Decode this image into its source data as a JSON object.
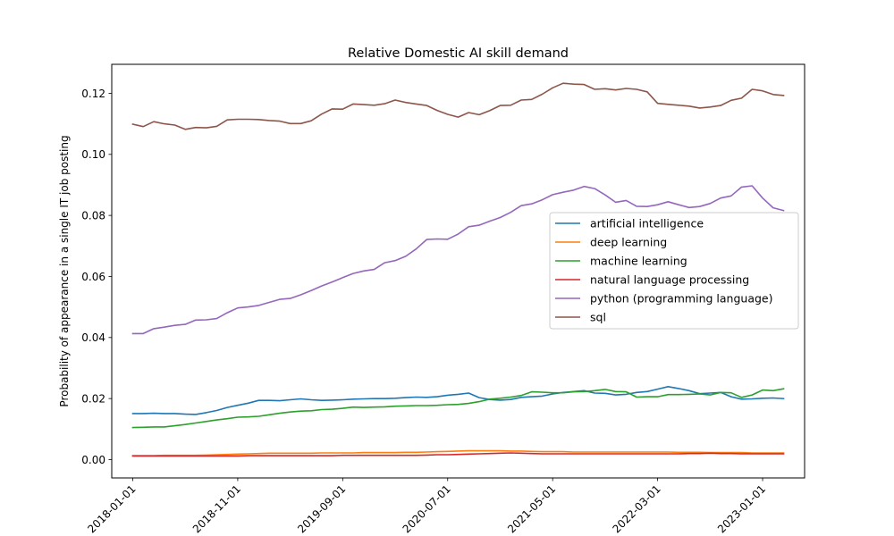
{
  "chart_data": {
    "type": "line",
    "title": "Relative Domestic AI skill demand",
    "xlabel": "",
    "ylabel": "Probability of appearance in a single IT job posting",
    "x_tick_labels": [
      "2018-01-01",
      "2018-11-01",
      "2019-09-01",
      "2020-07-01",
      "2021-05-01",
      "2022-03-01",
      "2023-01-01"
    ],
    "x_start": "2018-01",
    "x_end": "2023-02",
    "xlim": [
      "2017-11",
      "2023-05"
    ],
    "y_ticks": [
      0.0,
      0.02,
      0.04,
      0.06,
      0.08,
      0.1,
      0.12
    ],
    "y_tick_labels": [
      "0.00",
      "0.02",
      "0.04",
      "0.06",
      "0.08",
      "0.10",
      "0.12"
    ],
    "ylim": [
      -0.006,
      0.1295
    ],
    "grid": false,
    "legend_position": "center-right",
    "series": [
      {
        "name": "artificial intelligence",
        "color": "#1f77b4",
        "values": [
          0.0151,
          0.0151,
          0.0152,
          0.0151,
          0.0151,
          0.0149,
          0.0148,
          0.0154,
          0.0161,
          0.0171,
          0.0178,
          0.0185,
          0.0194,
          0.0194,
          0.0193,
          0.0196,
          0.0199,
          0.0196,
          0.0194,
          0.0195,
          0.0196,
          0.0198,
          0.0199,
          0.02,
          0.02,
          0.0201,
          0.0203,
          0.0205,
          0.0204,
          0.0206,
          0.0211,
          0.0214,
          0.0218,
          0.0203,
          0.0197,
          0.0195,
          0.0197,
          0.0204,
          0.0206,
          0.0208,
          0.0215,
          0.022,
          0.0223,
          0.0226,
          0.0218,
          0.0217,
          0.0212,
          0.0214,
          0.022,
          0.0223,
          0.0231,
          0.0239,
          0.0233,
          0.0226,
          0.0216,
          0.0218,
          0.022,
          0.0206,
          0.0198,
          0.0199,
          0.0201,
          0.0202,
          0.02
        ]
      },
      {
        "name": "deep learning",
        "color": "#ff7f0e",
        "values": [
          0.0013,
          0.0013,
          0.0013,
          0.0014,
          0.0014,
          0.0014,
          0.0014,
          0.0015,
          0.0016,
          0.0017,
          0.0018,
          0.0019,
          0.002,
          0.0021,
          0.0021,
          0.0021,
          0.0021,
          0.0021,
          0.0022,
          0.0022,
          0.0022,
          0.0022,
          0.0023,
          0.0023,
          0.0023,
          0.0023,
          0.0024,
          0.0024,
          0.0025,
          0.0026,
          0.0027,
          0.0028,
          0.0029,
          0.0029,
          0.0029,
          0.0029,
          0.0028,
          0.0028,
          0.0027,
          0.0026,
          0.0026,
          0.0026,
          0.0025,
          0.0025,
          0.0025,
          0.0025,
          0.0025,
          0.0025,
          0.0025,
          0.0025,
          0.0025,
          0.0025,
          0.0024,
          0.0024,
          0.0024,
          0.0023,
          0.0023,
          0.0023,
          0.0023,
          0.0022,
          0.0022,
          0.0022,
          0.0022
        ]
      },
      {
        "name": "machine learning",
        "color": "#2ca02c",
        "values": [
          0.0105,
          0.0106,
          0.0107,
          0.0107,
          0.0111,
          0.0115,
          0.012,
          0.0125,
          0.013,
          0.0134,
          0.0139,
          0.014,
          0.0142,
          0.0147,
          0.0152,
          0.0156,
          0.0159,
          0.016,
          0.0164,
          0.0165,
          0.0168,
          0.0172,
          0.0171,
          0.0172,
          0.0173,
          0.0175,
          0.0176,
          0.0177,
          0.0177,
          0.0178,
          0.018,
          0.0181,
          0.0184,
          0.019,
          0.0198,
          0.0201,
          0.0205,
          0.021,
          0.0222,
          0.0221,
          0.0219,
          0.0219,
          0.0222,
          0.0223,
          0.0226,
          0.023,
          0.0223,
          0.0222,
          0.0205,
          0.0206,
          0.0206,
          0.0213,
          0.0213,
          0.0214,
          0.0215,
          0.0212,
          0.022,
          0.0219,
          0.0204,
          0.0212,
          0.0228,
          0.0226,
          0.0232
        ]
      },
      {
        "name": "natural language processing",
        "color": "#d62728",
        "values": [
          0.0012,
          0.0012,
          0.0012,
          0.0012,
          0.0012,
          0.0012,
          0.0012,
          0.0012,
          0.0012,
          0.0012,
          0.0012,
          0.0013,
          0.0013,
          0.0013,
          0.0013,
          0.0013,
          0.0013,
          0.0013,
          0.0013,
          0.0013,
          0.0014,
          0.0014,
          0.0014,
          0.0014,
          0.0014,
          0.0014,
          0.0014,
          0.0014,
          0.0015,
          0.0016,
          0.0016,
          0.0017,
          0.0018,
          0.0019,
          0.002,
          0.0021,
          0.0022,
          0.0021,
          0.002,
          0.0019,
          0.0019,
          0.0019,
          0.0019,
          0.0019,
          0.0019,
          0.0019,
          0.0019,
          0.0019,
          0.0019,
          0.0019,
          0.0019,
          0.0019,
          0.0019,
          0.002,
          0.002,
          0.0021,
          0.002,
          0.002,
          0.0019,
          0.0019,
          0.0019,
          0.0019,
          0.0019
        ]
      },
      {
        "name": "python (programming language)",
        "color": "#9467bd",
        "values": [
          0.0413,
          0.0413,
          0.0429,
          0.0434,
          0.044,
          0.0443,
          0.0457,
          0.0458,
          0.0462,
          0.0481,
          0.0497,
          0.05,
          0.0505,
          0.0515,
          0.0525,
          0.0528,
          0.054,
          0.0554,
          0.0569,
          0.0582,
          0.0596,
          0.061,
          0.0618,
          0.0623,
          0.0645,
          0.0652,
          0.0666,
          0.069,
          0.0721,
          0.0723,
          0.0722,
          0.0739,
          0.0763,
          0.0768,
          0.0781,
          0.0793,
          0.081,
          0.0832,
          0.0838,
          0.0851,
          0.0868,
          0.0876,
          0.0883,
          0.0895,
          0.0888,
          0.0867,
          0.0843,
          0.0849,
          0.083,
          0.0829,
          0.0835,
          0.0845,
          0.0835,
          0.0826,
          0.0829,
          0.0839,
          0.0857,
          0.0864,
          0.0893,
          0.0897,
          0.0857,
          0.0825,
          0.0816
        ]
      },
      {
        "name": "sql",
        "color": "#8c564b",
        "values": [
          0.1099,
          0.1091,
          0.1107,
          0.11,
          0.1096,
          0.1082,
          0.1088,
          0.1087,
          0.1092,
          0.1113,
          0.1115,
          0.1115,
          0.1114,
          0.1111,
          0.1109,
          0.1101,
          0.1101,
          0.111,
          0.1132,
          0.1149,
          0.1148,
          0.1165,
          0.1163,
          0.1161,
          0.1166,
          0.1178,
          0.117,
          0.1165,
          0.116,
          0.1144,
          0.1131,
          0.1122,
          0.1137,
          0.113,
          0.1143,
          0.116,
          0.1161,
          0.1178,
          0.118,
          0.1197,
          0.1218,
          0.1233,
          0.123,
          0.1229,
          0.1213,
          0.1215,
          0.1211,
          0.1216,
          0.1213,
          0.1205,
          0.1167,
          0.1164,
          0.1161,
          0.1158,
          0.1152,
          0.1155,
          0.116,
          0.1177,
          0.1184,
          0.1213,
          0.1208,
          0.1196,
          0.1193
        ]
      }
    ]
  }
}
